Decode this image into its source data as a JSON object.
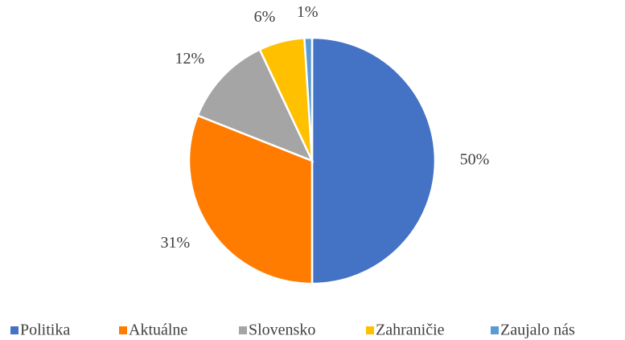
{
  "chart_data": {
    "type": "pie",
    "categories": [
      "Politika",
      "Aktuálne",
      "Slovensko",
      "Zahraničie",
      "Zaujalo nás"
    ],
    "values": [
      50,
      31,
      12,
      6,
      1
    ],
    "value_labels": [
      "50%",
      "31%",
      "12%",
      "6%",
      "1%"
    ],
    "colors": [
      "#4472c4",
      "#ff7c00",
      "#a5a5a5",
      "#ffc000",
      "#5b9bd5"
    ],
    "legend": "bottom"
  }
}
